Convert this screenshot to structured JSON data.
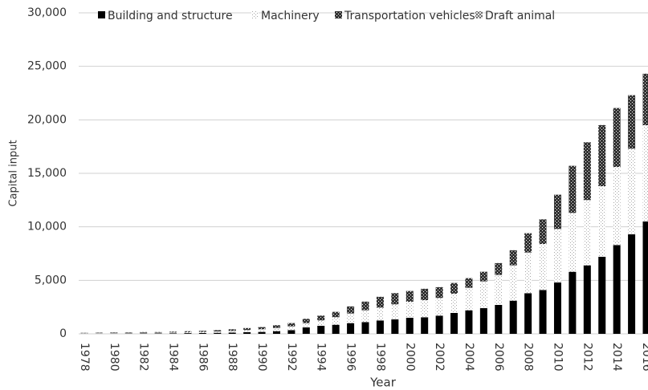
{
  "chart_data": {
    "type": "stacked-bar",
    "y_label": "Capital input",
    "x_label": "Year",
    "categories": [
      "1978",
      null,
      "1980",
      null,
      "1982",
      null,
      "1984",
      null,
      "1986",
      null,
      "1988",
      null,
      "1990",
      null,
      "1992",
      null,
      "1994",
      null,
      "1996",
      null,
      "1998",
      null,
      "2000",
      null,
      "2002",
      null,
      "2004",
      null,
      "2006",
      null,
      "2008",
      null,
      "2010",
      null,
      "2012",
      null,
      "2014",
      null,
      "2016"
    ],
    "series": [
      {
        "name": "Building and structure",
        "color": "#000000",
        "pattern": "solid",
        "values": [
          20,
          25,
          30,
          35,
          40,
          45,
          55,
          70,
          80,
          100,
          120,
          150,
          180,
          250,
          350,
          600,
          750,
          850,
          1000,
          1100,
          1250,
          1350,
          1500,
          1550,
          1700,
          1950,
          2200,
          2400,
          2700,
          3100,
          3800,
          4100,
          4800,
          5800,
          6400,
          7200,
          8300,
          9300,
          10500
        ]
      },
      {
        "name": "Machinery",
        "color": "#a6a6a6",
        "pattern": "dots",
        "values": [
          40,
          45,
          50,
          55,
          60,
          65,
          75,
          90,
          100,
          120,
          150,
          200,
          250,
          300,
          350,
          400,
          500,
          700,
          900,
          1100,
          1200,
          1400,
          1500,
          1600,
          1650,
          1800,
          2100,
          2500,
          2800,
          3300,
          3800,
          4300,
          5000,
          5500,
          6100,
          6600,
          7300,
          8000,
          9000
        ]
      },
      {
        "name": "Transportation vehicles",
        "color": "#333333",
        "pattern": "checker",
        "values": [
          30,
          35,
          40,
          45,
          50,
          55,
          65,
          80,
          100,
          120,
          150,
          180,
          200,
          250,
          300,
          400,
          450,
          500,
          650,
          800,
          1000,
          1050,
          1000,
          1050,
          1000,
          1000,
          900,
          900,
          1100,
          1400,
          1800,
          2300,
          3200,
          4400,
          5400,
          5700,
          5500,
          5000,
          4800
        ]
      },
      {
        "name": "Draft animal",
        "color": "#555555",
        "pattern": "cross",
        "values": [
          20,
          20,
          20,
          20,
          20,
          20,
          20,
          20,
          20,
          20,
          20,
          20,
          20,
          20,
          20,
          20,
          20,
          20,
          20,
          20,
          20,
          20,
          20,
          20,
          20,
          20,
          20,
          20,
          20,
          20,
          20,
          20,
          20,
          20,
          20,
          20,
          20,
          20,
          20
        ]
      }
    ],
    "ylim": [
      0,
      30000
    ],
    "yticks": [
      0,
      {
        "value": 5000,
        "label": "5,000"
      },
      {
        "value": 10000,
        "label": "10,000"
      },
      {
        "value": 15000,
        "label": "15,000"
      },
      {
        "value": 20000,
        "label": "20,000"
      },
      {
        "value": 25000,
        "label": "25,000"
      },
      {
        "value": 30000,
        "label": "30,000"
      }
    ],
    "grid": true,
    "legend": "top"
  }
}
